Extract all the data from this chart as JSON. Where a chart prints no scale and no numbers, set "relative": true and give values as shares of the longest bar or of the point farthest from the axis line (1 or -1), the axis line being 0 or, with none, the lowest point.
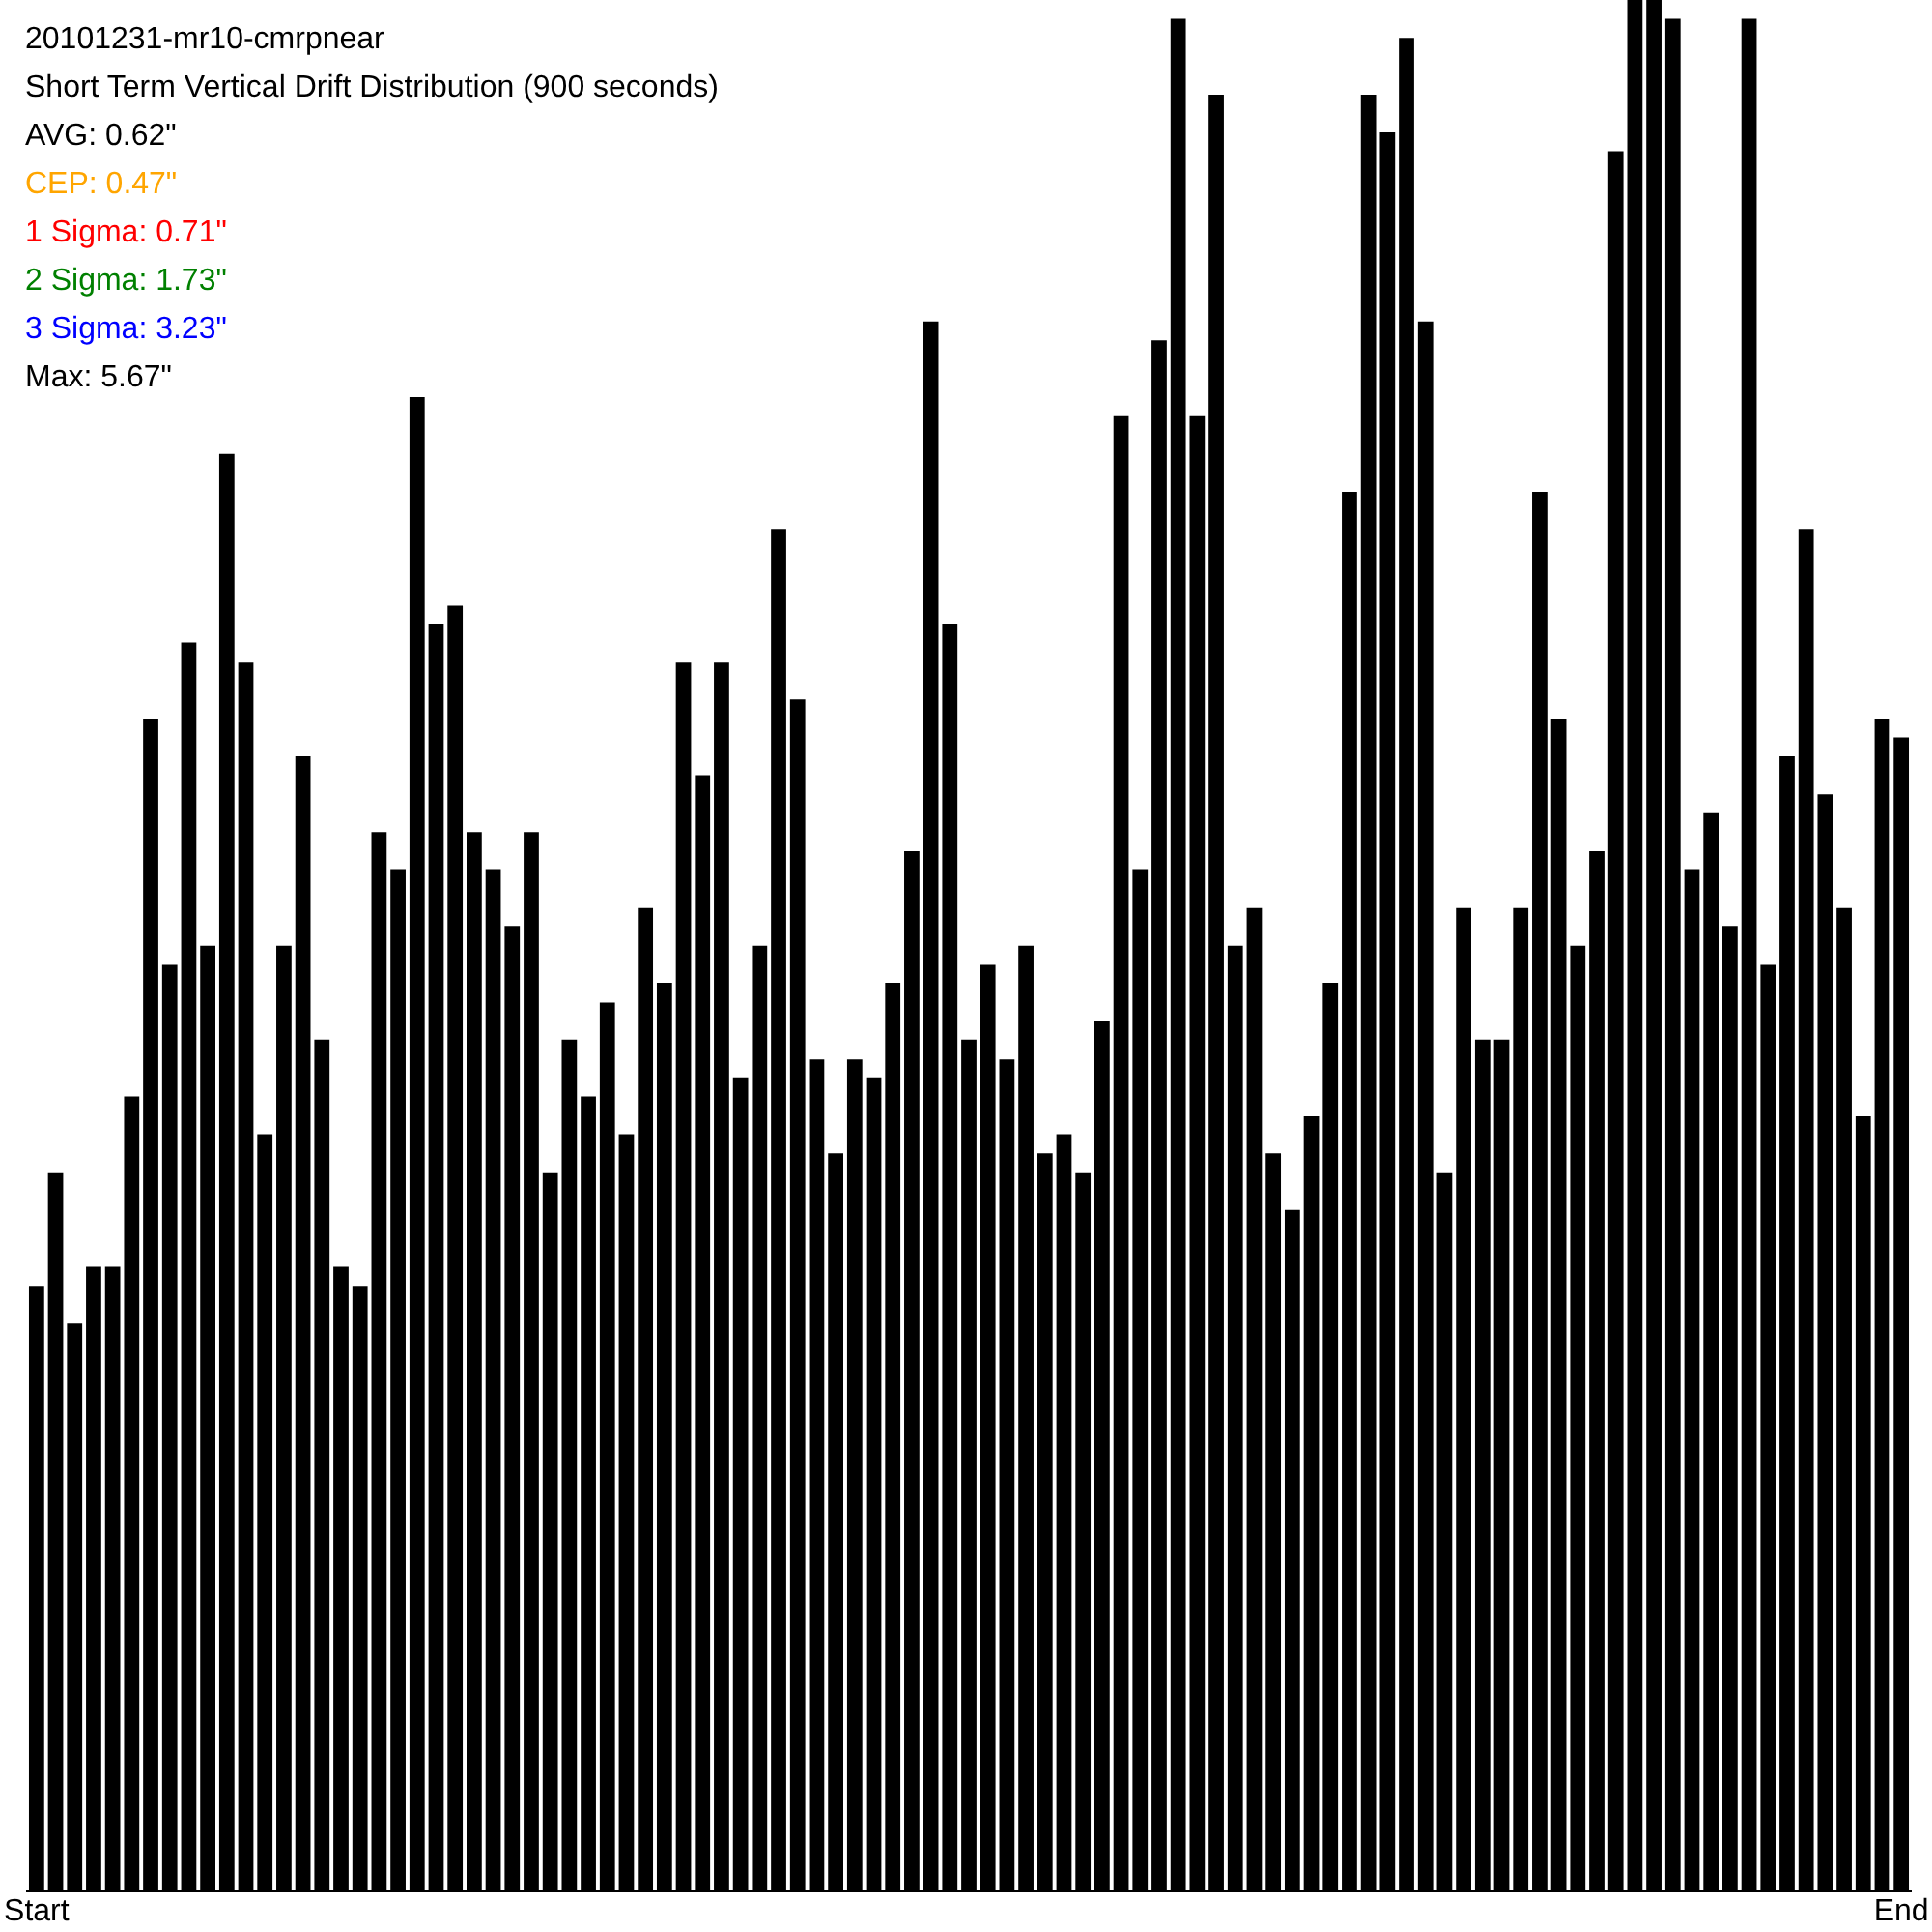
{
  "chart_data": {
    "type": "bar",
    "relative": true,
    "title": "20101231-mr10-cmrpnear",
    "subtitle": "Short Term Vertical Drift Distribution (900 seconds)",
    "annotations": [
      "AVG: 0.62\"",
      "CEP: 0.47\"",
      "1 Sigma: 0.71\"",
      "2 Sigma: 1.73\"",
      "3 Sigma: 3.23\"",
      "Max: 5.67\""
    ],
    "categories": [
      "Start",
      null,
      null,
      null,
      null,
      null,
      null,
      null,
      null,
      null,
      null,
      null,
      null,
      null,
      null,
      null,
      null,
      null,
      null,
      null,
      null,
      null,
      null,
      null,
      null,
      null,
      null,
      null,
      null,
      null,
      null,
      null,
      null,
      null,
      null,
      null,
      null,
      null,
      null,
      null,
      null,
      null,
      null,
      null,
      null,
      null,
      null,
      null,
      null,
      null,
      null,
      null,
      null,
      null,
      null,
      null,
      null,
      null,
      null,
      null,
      null,
      null,
      null,
      null,
      null,
      null,
      null,
      null,
      null,
      null,
      null,
      null,
      null,
      null,
      null,
      null,
      null,
      null,
      null,
      null,
      null,
      null,
      null,
      null,
      null,
      null,
      null,
      null,
      null,
      null,
      null,
      null,
      null,
      null,
      null,
      null,
      null,
      null,
      "End"
    ],
    "values": [
      0.32,
      0.38,
      0.3,
      0.33,
      0.33,
      0.42,
      0.62,
      0.49,
      0.66,
      0.5,
      0.76,
      0.65,
      0.4,
      0.5,
      0.6,
      0.45,
      0.33,
      0.32,
      0.56,
      0.54,
      0.79,
      0.67,
      0.68,
      0.56,
      0.54,
      0.51,
      0.56,
      0.38,
      0.45,
      0.42,
      0.47,
      0.4,
      0.52,
      0.48,
      0.65,
      0.59,
      0.65,
      0.43,
      0.5,
      0.72,
      0.63,
      0.44,
      0.39,
      0.44,
      0.43,
      0.48,
      0.55,
      0.83,
      0.67,
      0.45,
      0.49,
      0.44,
      0.5,
      0.39,
      0.4,
      0.38,
      0.46,
      0.78,
      0.54,
      0.82,
      0.99,
      0.78,
      0.95,
      0.5,
      0.52,
      0.39,
      0.36,
      0.41,
      0.48,
      0.74,
      0.95,
      0.93,
      0.98,
      0.83,
      0.38,
      0.52,
      0.45,
      0.45,
      0.52,
      0.74,
      0.62,
      0.5,
      0.55,
      0.92,
      1,
      1,
      0.99,
      0.54,
      0.57,
      0.51,
      0.99,
      0.49,
      0.6,
      0.72,
      0.58,
      0.52,
      0.41,
      0.62,
      0.61
    ],
    "color": "#000000"
  }
}
